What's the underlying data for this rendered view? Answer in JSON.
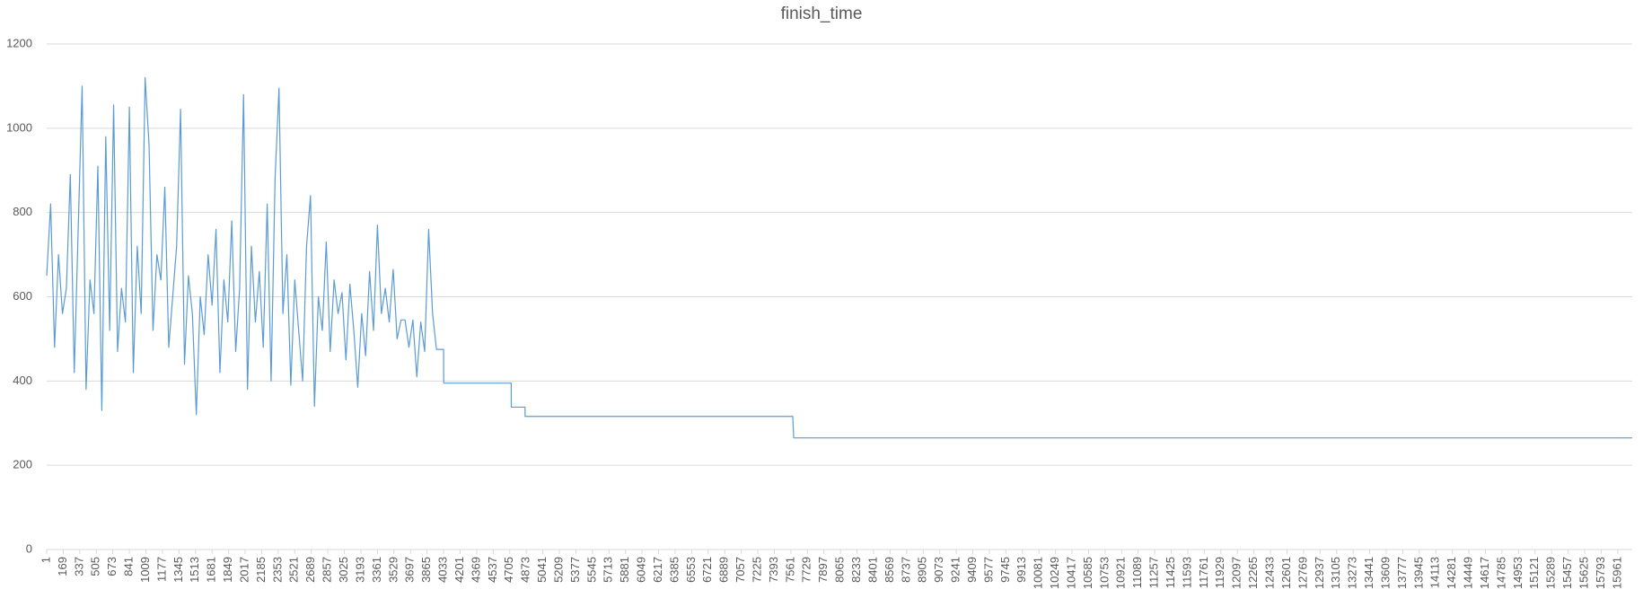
{
  "chart_data": {
    "type": "line",
    "title": "finish_time",
    "x": [
      1,
      41,
      81,
      121,
      161,
      201,
      241,
      281,
      321,
      361,
      401,
      441,
      481,
      521,
      561,
      601,
      641,
      681,
      721,
      761,
      801,
      841,
      881,
      921,
      961,
      1001,
      1041,
      1081,
      1121,
      1161,
      1201,
      1241,
      1281,
      1321,
      1361,
      1401,
      1441,
      1481,
      1521,
      1561,
      1601,
      1641,
      1681,
      1721,
      1761,
      1801,
      1841,
      1881,
      1921,
      1961,
      2001,
      2041,
      2081,
      2121,
      2161,
      2201,
      2241,
      2281,
      2321,
      2361,
      2401,
      2441,
      2481,
      2521,
      2561,
      2601,
      2641,
      2681,
      2721,
      2761,
      2801,
      2841,
      2881,
      2921,
      2961,
      3001,
      3041,
      3081,
      3121,
      3161,
      3201,
      3241,
      3281,
      3321,
      3361,
      3401,
      3441,
      3481,
      3521,
      3561,
      3601,
      3641,
      3681,
      3721,
      3761,
      3801,
      3841,
      3881,
      3921,
      3961,
      4000,
      4033,
      4034,
      4720,
      4721,
      4860,
      4861,
      7580,
      7590,
      16108
    ],
    "series": [
      {
        "name": "finish_time",
        "color": "#5b9bd5",
        "values": [
          650,
          820,
          480,
          700,
          560,
          620,
          890,
          420,
          760,
          1100,
          380,
          640,
          560,
          910,
          330,
          980,
          520,
          1055,
          470,
          620,
          540,
          1050,
          420,
          720,
          560,
          1120,
          960,
          520,
          700,
          640,
          860,
          480,
          600,
          720,
          1045,
          440,
          650,
          560,
          320,
          600,
          510,
          700,
          580,
          760,
          420,
          640,
          540,
          780,
          470,
          620,
          1080,
          380,
          720,
          540,
          660,
          480,
          820,
          400,
          880,
          1095,
          560,
          700,
          390,
          640,
          520,
          400,
          720,
          840,
          340,
          600,
          520,
          730,
          470,
          640,
          560,
          610,
          450,
          630,
          520,
          385,
          560,
          460,
          660,
          520,
          770,
          560,
          620,
          540,
          665,
          500,
          545,
          545,
          480,
          545,
          410,
          540,
          470,
          760,
          560,
          475,
          475,
          475,
          395,
          395,
          338,
          338,
          316,
          316,
          265,
          265
        ]
      }
    ],
    "xlim": [
      1,
      16108
    ],
    "xticks": [
      1,
      169,
      337,
      505,
      673,
      841,
      1009,
      1177,
      1345,
      1513,
      1681,
      1849,
      2017,
      2185,
      2353,
      2521,
      2689,
      2857,
      3025,
      3193,
      3361,
      3529,
      3697,
      3865,
      4033,
      4201,
      4369,
      4537,
      4705,
      4873,
      5041,
      5209,
      5377,
      5545,
      5713,
      5881,
      6049,
      6217,
      6385,
      6553,
      6721,
      6889,
      7057,
      7225,
      7393,
      7561,
      7729,
      7897,
      8065,
      8233,
      8401,
      8569,
      8737,
      8905,
      9073,
      9241,
      9409,
      9577,
      9745,
      9913,
      10081,
      10249,
      10417,
      10585,
      10753,
      10921,
      11089,
      11257,
      11425,
      11593,
      11761,
      11929,
      12097,
      12265,
      12433,
      12601,
      12769,
      12937,
      13105,
      13273,
      13441,
      13609,
      13777,
      13945,
      14113,
      14281,
      14449,
      14617,
      14785,
      14953,
      15121,
      15289,
      15457,
      15625,
      15793,
      15961
    ],
    "ylim": [
      0,
      1200
    ],
    "yticks": [
      0,
      200,
      400,
      600,
      800,
      1000,
      1200
    ],
    "grid": true
  }
}
